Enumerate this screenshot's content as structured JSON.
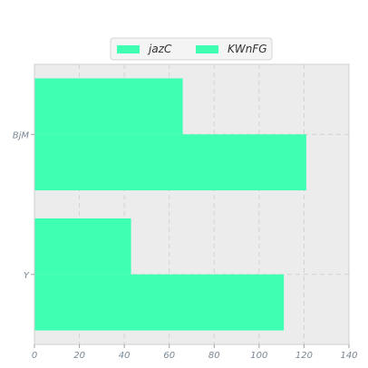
{
  "chart_data": {
    "type": "bar",
    "orientation": "horizontal",
    "categories": [
      "BjM",
      "Y"
    ],
    "series": [
      {
        "name": "jazC",
        "values": [
          66,
          43
        ],
        "color": "#3fffb2"
      },
      {
        "name": "KWnFG",
        "values": [
          121,
          111
        ],
        "color": "#3fffb2"
      }
    ],
    "xlim": [
      0,
      140
    ],
    "xticks": [
      "0",
      "20",
      "40",
      "60",
      "80",
      "100",
      "120",
      "140"
    ],
    "grid": true,
    "legend_position": "top-center",
    "title": "",
    "xlabel": "",
    "ylabel": "",
    "background_color": "#ececec"
  }
}
